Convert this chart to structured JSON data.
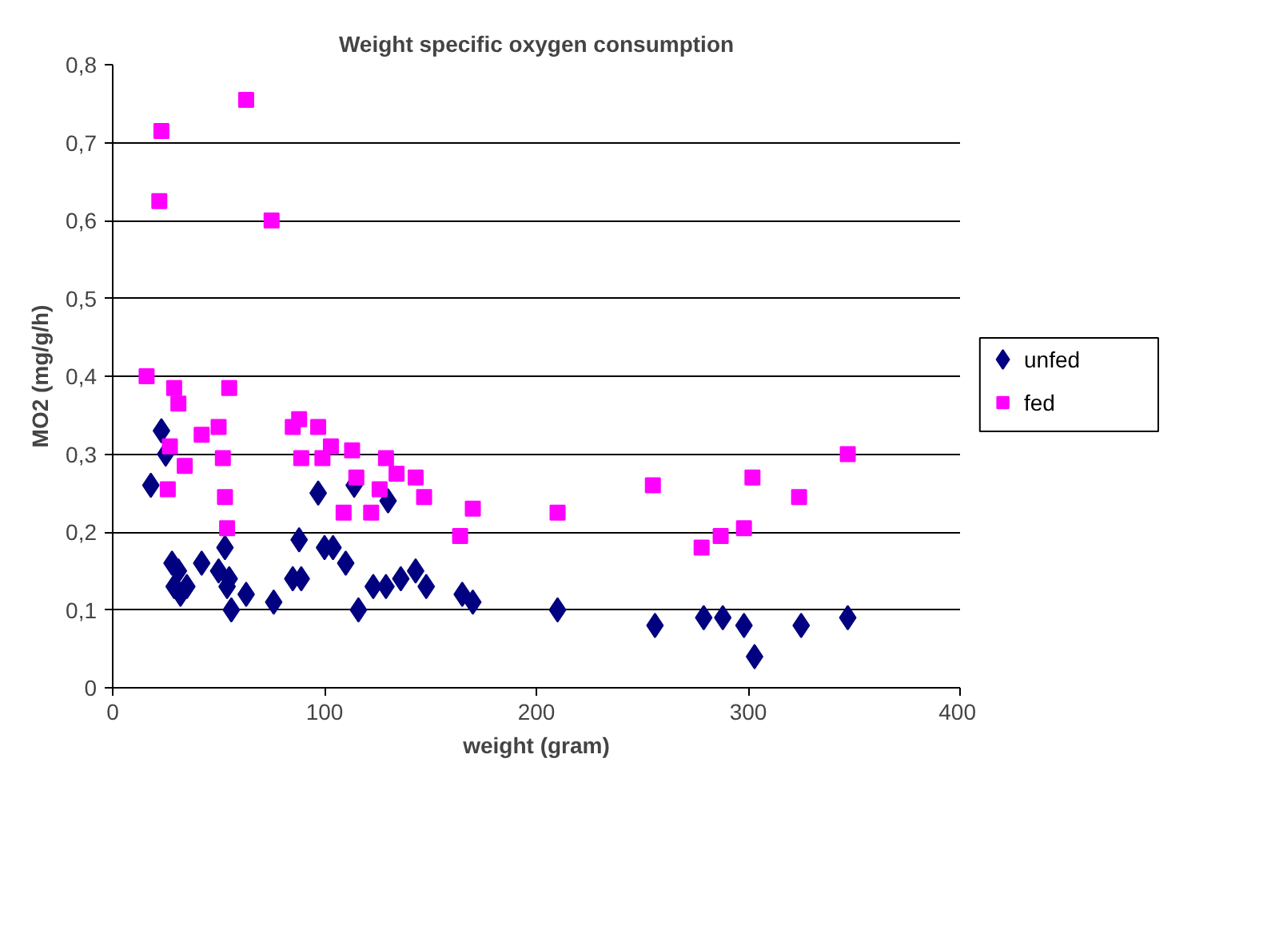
{
  "chart_data": {
    "type": "scatter",
    "title": "Weight specific oxygen consumption",
    "xlabel": "weight (gram)",
    "ylabel": "MO2 (mg/g/h)",
    "xlim": [
      0,
      400
    ],
    "xticks": [
      0,
      100,
      200,
      300,
      400
    ],
    "ylim": [
      0,
      0.8
    ],
    "yticks": [
      {
        "value": 0,
        "label": "0"
      },
      {
        "value": 0.1,
        "label": "0,1"
      },
      {
        "value": 0.2,
        "label": "0,2"
      },
      {
        "value": 0.3,
        "label": "0,3"
      },
      {
        "value": 0.4,
        "label": "0,4"
      },
      {
        "value": 0.5,
        "label": "0,5"
      },
      {
        "value": 0.6,
        "label": "0,6"
      },
      {
        "value": 0.7,
        "label": "0,7"
      },
      {
        "value": 0.8,
        "label": "0,8"
      }
    ],
    "grid": "y",
    "legend": "right",
    "series": [
      {
        "name": "unfed",
        "color": "#000080",
        "marker": "diamond",
        "x": [
          18,
          23,
          25,
          28,
          29,
          31,
          32,
          35,
          42,
          50,
          53,
          54,
          55,
          56,
          63,
          76,
          85,
          88,
          89,
          97,
          100,
          104,
          110,
          114,
          116,
          123,
          130,
          129,
          136,
          143,
          148,
          165,
          170,
          210,
          256,
          279,
          288,
          298,
          303,
          325,
          347
        ],
        "values": [
          0.26,
          0.33,
          0.3,
          0.16,
          0.13,
          0.15,
          0.12,
          0.13,
          0.16,
          0.15,
          0.18,
          0.13,
          0.14,
          0.1,
          0.12,
          0.11,
          0.14,
          0.19,
          0.14,
          0.25,
          0.18,
          0.18,
          0.16,
          0.26,
          0.1,
          0.13,
          0.24,
          0.13,
          0.14,
          0.15,
          0.13,
          0.12,
          0.11,
          0.1,
          0.08,
          0.09,
          0.09,
          0.08,
          0.04,
          0.08,
          0.09
        ]
      },
      {
        "name": "fed",
        "color": "#ff00ff",
        "marker": "square",
        "x": [
          16,
          22,
          23,
          26,
          27,
          29,
          31,
          34,
          42,
          50,
          52,
          53,
          54,
          55,
          63,
          75,
          85,
          88,
          89,
          97,
          99,
          103,
          109,
          113,
          115,
          122,
          126,
          129,
          134,
          143,
          147,
          164,
          170,
          210,
          255,
          278,
          287,
          298,
          302,
          324,
          347
        ],
        "values": [
          0.4,
          0.625,
          0.715,
          0.255,
          0.31,
          0.385,
          0.365,
          0.285,
          0.325,
          0.335,
          0.295,
          0.245,
          0.205,
          0.385,
          0.755,
          0.6,
          0.335,
          0.345,
          0.295,
          0.335,
          0.295,
          0.31,
          0.225,
          0.305,
          0.27,
          0.225,
          0.255,
          0.295,
          0.275,
          0.27,
          0.245,
          0.195,
          0.23,
          0.225,
          0.26,
          0.18,
          0.195,
          0.205,
          0.27,
          0.245,
          0.3
        ]
      }
    ]
  }
}
